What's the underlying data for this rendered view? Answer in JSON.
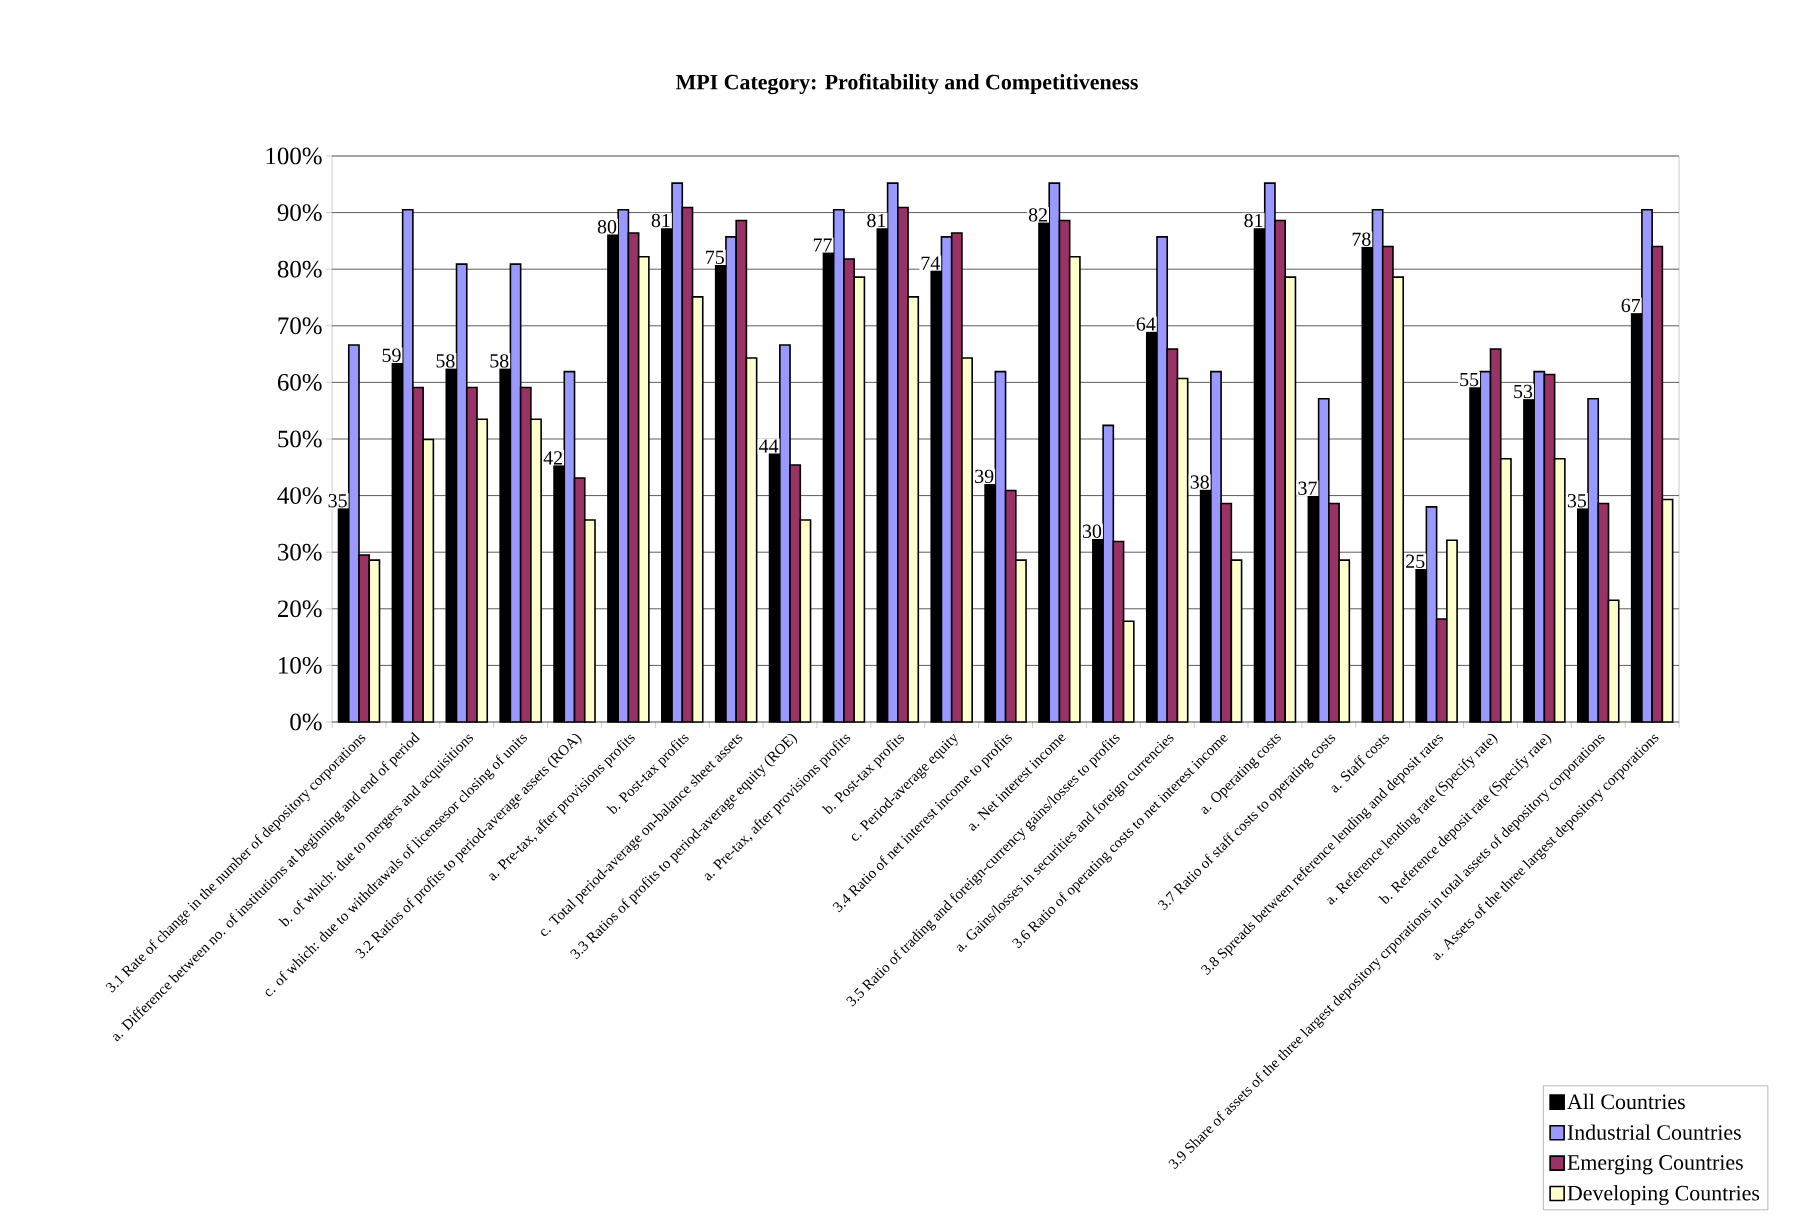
{
  "chart_data": {
    "type": "bar",
    "title": "MPI Category: Profitability and Competitiveness",
    "categories": [
      "3.1 Rate of change in the number of depository corporations",
      "a. Difference between no. of institutions at beginning and end of period",
      "b. of which: due to mergers and acquisitions",
      "c. of which: due to withdrawals of licensesor closing of units",
      "3.2 Ratios of profits to period-average assets (ROA)",
      "a. Pre-tax, after provisions profits",
      "b. Post-tax profits",
      "c. Total period-average on-balance sheet assets",
      "3.3 Ratios of profits to period-average equity (ROE)",
      "a. Pre-tax, after provisions profits",
      "b. Post-tax profits",
      "c. Period-average equity",
      "3.4 Ratio of net interest income to profits",
      "a. Net interest income",
      "3.5 Ratio of trading and foreign-currency gains/losses to profits",
      "a. Gains/losses in securities and foreign currencies",
      "3.6 Ratio of operating costs to net interest income",
      "a. Operating costs",
      "3.7 Ratio of staff costs to operating costs",
      "a. Staff costs",
      "3.8 Spreads between reference lending and deposit rates",
      "a. Reference lending rate (Specify rate)",
      "b. Reference deposit rate (Specify rate)",
      "3.9 Share of assets of the three largest depository  crporations in total assets of depository corporations",
      "a. Assets of the three largest depository corporations"
    ],
    "series": [
      {
        "name": "All Countries",
        "color": "#000000",
        "values": [
          37.7,
          63.4,
          62.4,
          62.4,
          45.3,
          86.1,
          87.2,
          80.7,
          47.4,
          82.9,
          87.2,
          79.7,
          42.0,
          88.2,
          32.3,
          68.9,
          41.0,
          87.2,
          39.9,
          83.9,
          27.0,
          59.1,
          57.0,
          37.7,
          72.2
        ]
      },
      {
        "name": "Industrial Countries",
        "color": "#9999ff",
        "values": [
          66.6,
          90.5,
          80.9,
          80.9,
          61.9,
          90.5,
          95.2,
          85.7,
          66.6,
          90.5,
          95.2,
          85.7,
          61.9,
          95.2,
          52.4,
          85.7,
          61.9,
          95.2,
          57.1,
          90.5,
          38.0,
          61.9,
          61.9,
          57.1,
          90.5
        ]
      },
      {
        "name": "Emerging Countries",
        "color": "#993366",
        "values": [
          29.5,
          59.1,
          59.1,
          59.1,
          43.1,
          86.4,
          90.9,
          88.6,
          45.4,
          81.8,
          90.9,
          86.4,
          40.9,
          88.6,
          31.9,
          65.9,
          38.6,
          88.6,
          38.6,
          84.0,
          18.2,
          65.9,
          61.4,
          38.6,
          84.0
        ]
      },
      {
        "name": "Developing Countries",
        "color": "#ffffcc",
        "values": [
          28.6,
          49.9,
          53.5,
          53.5,
          35.7,
          82.2,
          75.1,
          64.3,
          35.7,
          78.6,
          75.1,
          64.3,
          28.6,
          82.2,
          17.8,
          60.7,
          28.6,
          78.6,
          28.6,
          78.6,
          32.1,
          46.5,
          46.5,
          21.5,
          39.3
        ]
      }
    ],
    "annotations": [
      {
        "text": "35",
        "x": "3.1 Rate of change in the number of depository corporations",
        "y": 37.7
      },
      {
        "text": "59",
        "x": "a. Difference between no. of institutions at beginning and end of period",
        "y": 63.4
      },
      {
        "text": "58",
        "x": "b. of which: due to mergers and acquisitions",
        "y": 62.4
      },
      {
        "text": "58",
        "x": "c. of which: due to withdrawals of licensesor closing of units",
        "y": 62.4
      },
      {
        "text": "42",
        "x": "3.2 Ratios of profits to period-average assets (ROA)",
        "y": 45.3
      },
      {
        "text": "80",
        "x": "a. Pre-tax, after provisions profits",
        "y": 86.1
      },
      {
        "text": "81",
        "x": "b. Post-tax profits",
        "y": 87.2
      },
      {
        "text": "75",
        "x": "c. Total period-average on-balance sheet assets",
        "y": 80.7
      },
      {
        "text": "44",
        "x": "3.3 Ratios of profits to period-average equity (ROE)",
        "y": 47.4
      },
      "77",
      "81",
      {
        "text": "74",
        "x": "c. Period-average equity",
        "y": 79.7
      },
      {
        "text": "39",
        "x": "3.4 Ratio of net interest income to profits",
        "y": 42.0
      },
      {
        "text": "82",
        "x": "a. Net interest income",
        "y": 88.2
      },
      {
        "text": "30",
        "x": "3.5 Ratio of trading and foreign-currency gains/losses to profits",
        "y": 32.3
      },
      {
        "text": "64",
        "x": "a. Gains/losses in securities and foreign currencies",
        "y": 68.9
      },
      {
        "text": "38",
        "x": "3.6 Ratio of operating costs to net interest income",
        "y": 41.0
      },
      {
        "text": "81",
        "x": "a. Operating costs",
        "y": 87.2
      },
      {
        "text": "37",
        "x": "3.7 Ratio of staff costs to operating costs",
        "y": 39.9
      },
      {
        "text": "78",
        "x": "a. Staff costs",
        "y": 83.9
      },
      {
        "text": "25",
        "x": "3.8 Spreads between reference lending and deposit rates",
        "y": 27.0
      },
      {
        "text": "55",
        "x": "a. Reference lending rate (Specify rate)",
        "y": 59.1
      },
      {
        "text": "53",
        "x": "b. Reference deposit rate (Specify rate)",
        "y": 57.0
      },
      {
        "text": "35",
        "x": "3.9 Share of assets of the three largest depository  crporations in total assets of depository corporations",
        "y": 37.7
      },
      {
        "text": "67",
        "x": "a. Assets of the three largest depository corporations",
        "y": 72.2
      }
    ],
    "ylim": [
      0,
      100
    ],
    "yticks": [
      {
        "value": 0,
        "label": "0%"
      },
      {
        "value": 10,
        "label": "10%"
      },
      {
        "value": 20,
        "label": "20%"
      },
      {
        "value": 30,
        "label": "30%"
      },
      {
        "value": 40,
        "label": "40%"
      },
      {
        "value": 50,
        "label": "50%"
      },
      {
        "value": 60,
        "label": "60%"
      },
      {
        "value": 70,
        "label": "70%"
      },
      {
        "value": 80,
        "label": "80%"
      },
      {
        "value": 90,
        "label": "90%"
      },
      {
        "value": 100,
        "label": "100%"
      }
    ],
    "grid": "y",
    "legend": "bottom right"
  }
}
